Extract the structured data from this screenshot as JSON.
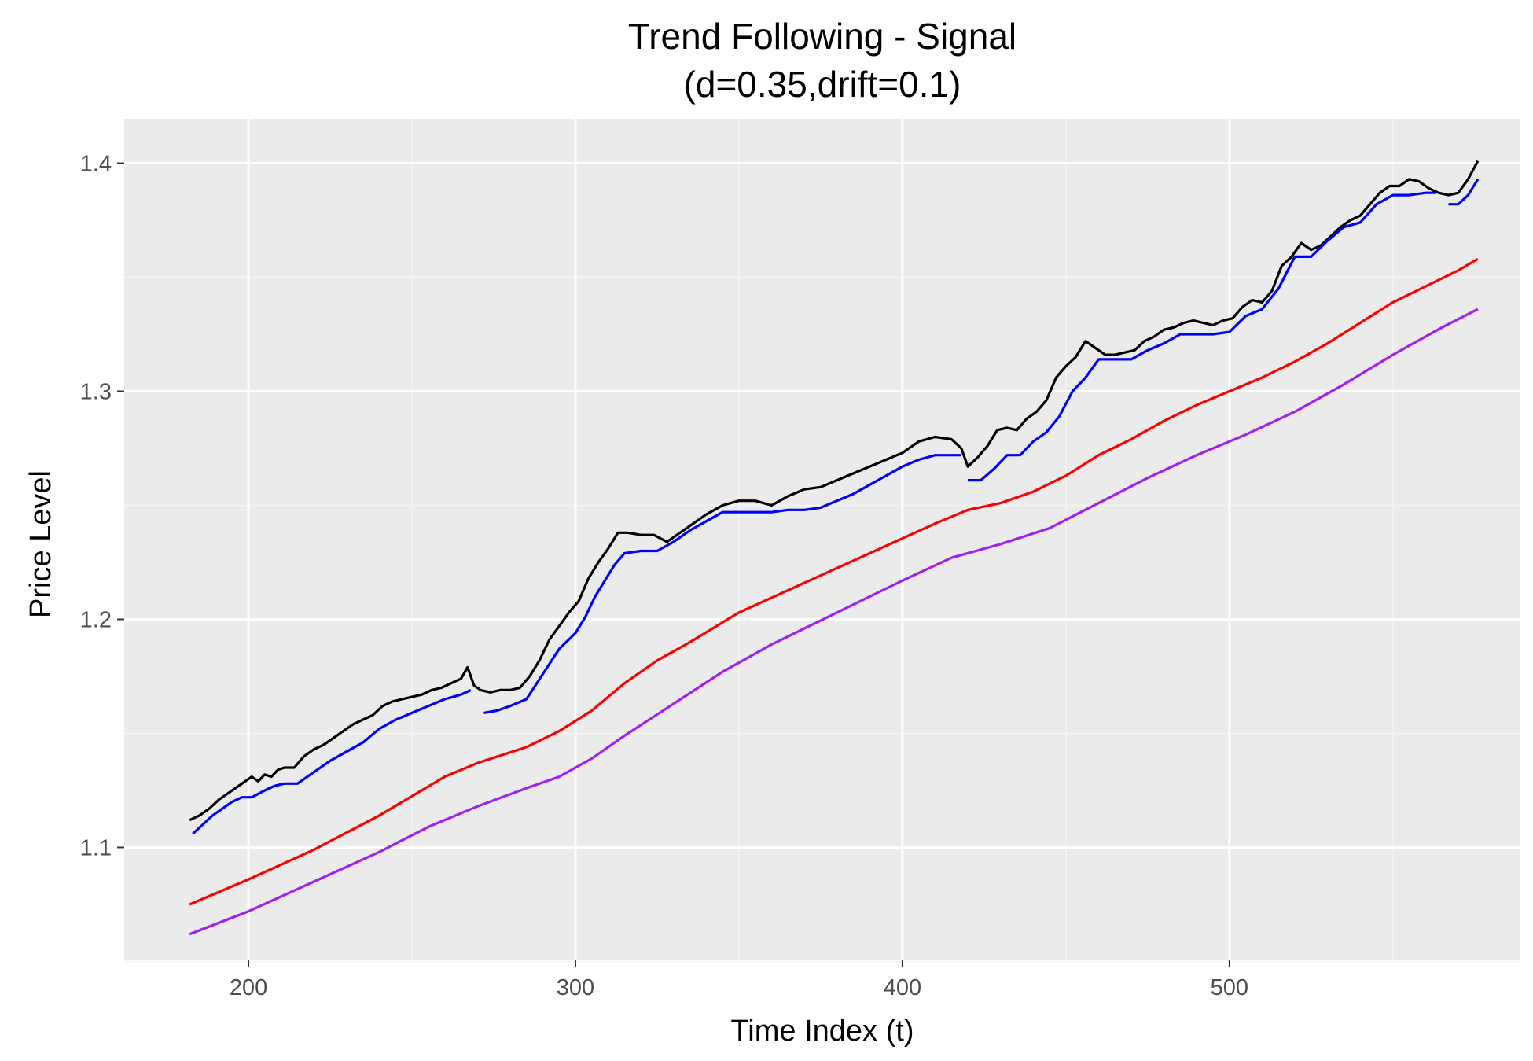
{
  "chart_data": {
    "type": "line",
    "title": "Trend Following - Signal",
    "subtitle": "(d=0.35,drift=0.1)",
    "xlabel": "Time Index (t)",
    "ylabel": "Price Level",
    "xlim": [
      162,
      589
    ],
    "ylim": [
      1.0505,
      1.4195
    ],
    "x_ticks": [
      200,
      300,
      400,
      500
    ],
    "x_minor_ticks": [
      250,
      350,
      450,
      550
    ],
    "y_ticks": [
      1.1,
      1.2,
      1.3,
      1.4
    ],
    "y_minor_ticks": [
      1.05,
      1.15,
      1.25,
      1.35
    ],
    "x_tick_labels": [
      "200",
      "300",
      "400",
      "500"
    ],
    "y_tick_labels": [
      "1.1",
      "1.2",
      "1.3",
      "1.4"
    ],
    "grid": true,
    "legend": "none",
    "colors": {
      "panel_bg": "#ebebeb",
      "grid_major": "#ffffff",
      "grid_minor": "#f5f5f5",
      "tick_text": "#4d4d4d"
    },
    "series": [
      {
        "color": "#000000",
        "segments": [
          {
            "x": [
              182,
              185,
              188,
              191,
              194,
              197,
              199,
              201,
              203,
              205,
              207,
              209,
              211,
              214,
              217,
              220,
              223,
              226,
              229,
              232,
              235,
              238,
              241,
              244,
              247,
              250,
              253,
              256,
              259,
              262,
              265,
              267,
              269,
              271,
              274,
              277,
              280,
              283,
              286,
              289,
              292,
              295,
              298,
              301,
              304,
              307,
              310,
              313,
              316,
              320,
              324,
              328,
              332,
              336,
              340,
              345,
              350,
              355,
              360,
              365,
              370,
              375,
              380,
              385,
              390,
              395,
              400,
              405,
              410,
              415,
              418,
              420,
              423,
              426,
              429,
              432,
              435,
              438,
              441,
              444,
              447,
              450,
              453,
              456,
              459,
              462,
              465,
              468,
              471,
              474,
              477,
              480,
              483,
              486,
              489,
              492,
              495,
              498,
              501,
              504,
              507,
              510,
              513,
              516,
              519,
              522,
              525,
              528,
              531,
              534,
              537,
              540,
              543,
              546,
              549,
              552,
              555,
              558,
              561,
              564,
              567,
              570,
              573,
              576
            ],
            "y": [
              1.112,
              1.114,
              1.117,
              1.121,
              1.124,
              1.127,
              1.129,
              1.131,
              1.129,
              1.132,
              1.131,
              1.134,
              1.135,
              1.135,
              1.14,
              1.143,
              1.145,
              1.148,
              1.151,
              1.154,
              1.156,
              1.158,
              1.162,
              1.164,
              1.165,
              1.166,
              1.167,
              1.169,
              1.17,
              1.172,
              1.174,
              1.179,
              1.171,
              1.169,
              1.168,
              1.169,
              1.169,
              1.17,
              1.175,
              1.182,
              1.191,
              1.197,
              1.203,
              1.208,
              1.218,
              1.225,
              1.231,
              1.238,
              1.238,
              1.237,
              1.237,
              1.234,
              1.238,
              1.242,
              1.246,
              1.25,
              1.252,
              1.252,
              1.25,
              1.254,
              1.257,
              1.258,
              1.261,
              1.264,
              1.267,
              1.27,
              1.273,
              1.278,
              1.28,
              1.279,
              1.275,
              1.267,
              1.271,
              1.276,
              1.283,
              1.284,
              1.283,
              1.288,
              1.291,
              1.296,
              1.306,
              1.311,
              1.315,
              1.322,
              1.319,
              1.316,
              1.316,
              1.317,
              1.318,
              1.322,
              1.324,
              1.327,
              1.328,
              1.33,
              1.331,
              1.33,
              1.329,
              1.331,
              1.332,
              1.337,
              1.34,
              1.339,
              1.344,
              1.355,
              1.359,
              1.365,
              1.362,
              1.364,
              1.368,
              1.372,
              1.375,
              1.377,
              1.382,
              1.387,
              1.39,
              1.39,
              1.393,
              1.392,
              1.389,
              1.387,
              1.386,
              1.387,
              1.393,
              1.401
            ]
          }
        ]
      },
      {
        "color": "#0000ff",
        "segments": [
          {
            "x": [
              183,
              186,
              189,
              192,
              195,
              198,
              201,
              205,
              208,
              211,
              215,
              220,
              225,
              230,
              235,
              240,
              245,
              250,
              255,
              260,
              265,
              268
            ],
            "y": [
              1.106,
              1.11,
              1.114,
              1.117,
              1.12,
              1.122,
              1.122,
              1.125,
              1.127,
              1.128,
              1.128,
              1.133,
              1.138,
              1.142,
              1.146,
              1.152,
              1.156,
              1.159,
              1.162,
              1.165,
              1.167,
              1.169
            ]
          },
          {
            "x": [
              272,
              276,
              280,
              285,
              290,
              295,
              300,
              303,
              306,
              309,
              312,
              315,
              320,
              325,
              330,
              335,
              340,
              345,
              350,
              355,
              360,
              365,
              370,
              375,
              380,
              385,
              390,
              395,
              400,
              405,
              410,
              415,
              418
            ],
            "y": [
              1.159,
              1.16,
              1.162,
              1.165,
              1.176,
              1.187,
              1.194,
              1.201,
              1.21,
              1.217,
              1.224,
              1.229,
              1.23,
              1.23,
              1.234,
              1.239,
              1.243,
              1.247,
              1.247,
              1.247,
              1.247,
              1.248,
              1.248,
              1.249,
              1.252,
              1.255,
              1.259,
              1.263,
              1.267,
              1.27,
              1.272,
              1.272,
              1.272
            ]
          },
          {
            "x": [
              420,
              424,
              428,
              432,
              436,
              440,
              444,
              448,
              452,
              456,
              460,
              465,
              470,
              475,
              480,
              485,
              490,
              495,
              500,
              505,
              510,
              515,
              520,
              525,
              530,
              535,
              540,
              545,
              550,
              555,
              560,
              563
            ],
            "y": [
              1.261,
              1.261,
              1.266,
              1.272,
              1.272,
              1.278,
              1.282,
              1.289,
              1.3,
              1.306,
              1.314,
              1.314,
              1.314,
              1.318,
              1.321,
              1.325,
              1.325,
              1.325,
              1.326,
              1.333,
              1.336,
              1.345,
              1.359,
              1.359,
              1.366,
              1.372,
              1.374,
              1.382,
              1.386,
              1.386,
              1.387,
              1.387
            ]
          },
          {
            "x": [
              567,
              570,
              573,
              576
            ],
            "y": [
              1.382,
              1.382,
              1.386,
              1.393
            ]
          }
        ]
      },
      {
        "color": "#ff0000",
        "segments": [
          {
            "x": [
              182,
              200,
              220,
              240,
              260,
              270,
              285,
              295,
              305,
              315,
              325,
              335,
              350,
              370,
              390,
              410,
              420,
              430,
              440,
              450,
              460,
              470,
              480,
              490,
              500,
              510,
              520,
              530,
              540,
              550,
              560,
              570,
              576
            ],
            "y": [
              1.075,
              1.086,
              1.099,
              1.114,
              1.131,
              1.137,
              1.144,
              1.151,
              1.16,
              1.172,
              1.182,
              1.19,
              1.203,
              1.216,
              1.229,
              1.242,
              1.248,
              1.251,
              1.256,
              1.263,
              1.272,
              1.279,
              1.287,
              1.294,
              1.3,
              1.306,
              1.313,
              1.321,
              1.33,
              1.339,
              1.346,
              1.353,
              1.358
            ]
          }
        ]
      },
      {
        "color": "#a020f0",
        "segments": [
          {
            "x": [
              182,
              200,
              220,
              240,
              255,
              270,
              285,
              295,
              305,
              315,
              330,
              345,
              360,
              380,
              400,
              415,
              430,
              445,
              460,
              475,
              490,
              505,
              520,
              535,
              550,
              565,
              576
            ],
            "y": [
              1.062,
              1.072,
              1.085,
              1.098,
              1.109,
              1.118,
              1.126,
              1.131,
              1.139,
              1.149,
              1.163,
              1.177,
              1.189,
              1.203,
              1.217,
              1.227,
              1.233,
              1.24,
              1.251,
              1.262,
              1.272,
              1.281,
              1.291,
              1.303,
              1.316,
              1.328,
              1.336
            ]
          }
        ]
      }
    ]
  }
}
